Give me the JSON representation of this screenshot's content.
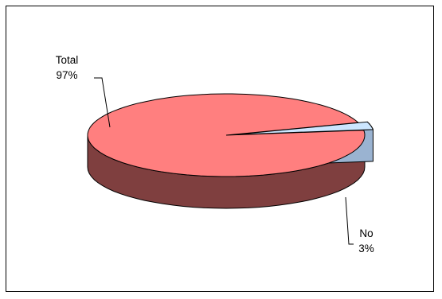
{
  "chart_data": {
    "type": "pie",
    "style": "3d",
    "categories": [
      "Total",
      "No"
    ],
    "values": [
      97,
      3
    ],
    "data_labels": [
      {
        "category": "Total",
        "percent": "97%"
      },
      {
        "category": "No",
        "percent": "3%"
      }
    ],
    "colors": {
      "Total": {
        "top": "#FF7F7F",
        "side": "#7F3F3F"
      },
      "No": {
        "top": "#CCE6FF",
        "side": "#9AB3D1"
      }
    },
    "border_color": "#000000",
    "legend": "none",
    "explode": "No"
  }
}
